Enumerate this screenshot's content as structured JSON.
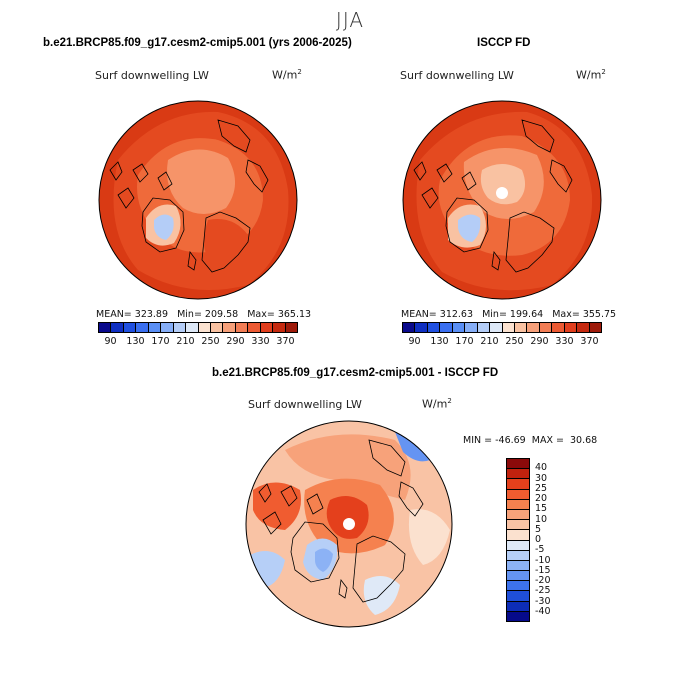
{
  "season": "JJA",
  "panels": [
    {
      "title": "b.e21.BRCP85.f09_g17.cesm2-cmip5.001 (yrs 2006-2025)",
      "variable": "Surf downwelling LW",
      "units_base": "W/m",
      "units_exp": "2",
      "stats": "MEAN= 323.89   Min= 209.58   Max= 365.13"
    },
    {
      "title": "ISCCP FD",
      "variable": "Surf downwelling LW",
      "units_base": "W/m",
      "units_exp": "2",
      "stats": "MEAN= 312.63   Min= 199.64   Max= 355.75"
    },
    {
      "title": "b.e21.BRCP85.f09_g17.cesm2-cmip5.001 - ISCCP FD",
      "variable": "Surf downwelling LW",
      "units_base": "W/m",
      "units_exp": "2",
      "stats": "MIN = -46.69  MAX =  30.68"
    }
  ],
  "abs_colorbar": {
    "ticks": [
      "90",
      "130",
      "170",
      "210",
      "250",
      "290",
      "330",
      "370"
    ],
    "colors": [
      "#0a0a8c",
      "#0f2fc2",
      "#2050e0",
      "#3a6ff0",
      "#5a8ff5",
      "#86aef7",
      "#b4cdf7",
      "#dde8f7",
      "#fbe2d0",
      "#f9c2a2",
      "#f6a07a",
      "#f27d55",
      "#ec5a33",
      "#e13e1d",
      "#c52a10",
      "#9e1a0a"
    ]
  },
  "diff_colorbar": {
    "ticks": [
      "40",
      "30",
      "25",
      "20",
      "15",
      "10",
      "5",
      "0",
      "-5",
      "-10",
      "-15",
      "-20",
      "-25",
      "-30",
      "-40"
    ],
    "colors": [
      "#8b0a0a",
      "#c1220e",
      "#e4401c",
      "#f05c30",
      "#f5814f",
      "#f7a27a",
      "#f9c3a5",
      "#fbe1cf",
      "#dfe9f7",
      "#b6cff7",
      "#8cb2f5",
      "#6594f2",
      "#3d72ec",
      "#1f4fd9",
      "#0d2db8",
      "#060a8a"
    ]
  },
  "colors": {
    "ocean_warm": "#e44a20",
    "ocean_mid": "#ef6a3a",
    "arctic": "#f69469",
    "ice": "#dde8f7",
    "diff_base": "#f9c3a5"
  }
}
